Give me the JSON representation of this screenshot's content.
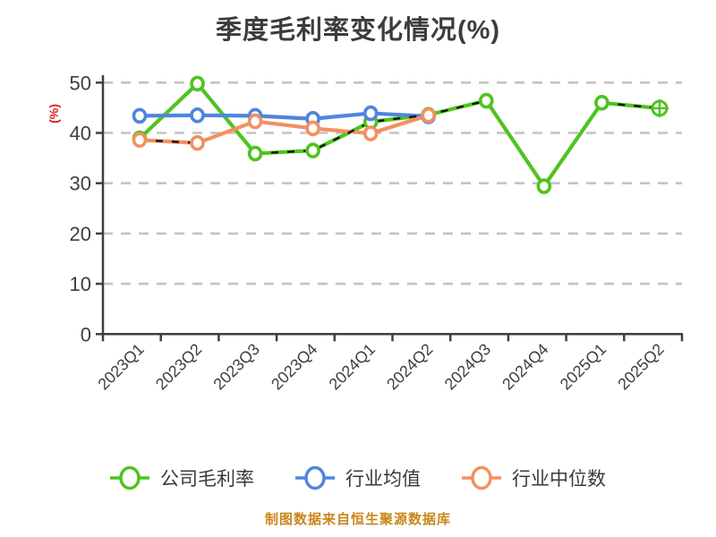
{
  "chart_data": {
    "type": "line",
    "title": "季度毛利率变化情况(%)",
    "ylabel": "(%)",
    "footer": "制图数据来自恒生聚源数据库",
    "categories": [
      "2023Q1",
      "2023Q2",
      "2023Q3",
      "2023Q4",
      "2024Q1",
      "2024Q2",
      "2024Q3",
      "2024Q4",
      "2025Q1",
      "2025Q2"
    ],
    "yticks": [
      0,
      10,
      20,
      30,
      40,
      50
    ],
    "ylim": [
      0,
      50
    ],
    "grid": "horizontal-dashed",
    "legend_position": "bottom",
    "series": [
      {
        "name": "公司毛利率",
        "color": "#4fc41e",
        "marker": "circle",
        "last_marker": "crosshair",
        "values": [
          38.9,
          49.8,
          35.9,
          36.5,
          42.2,
          43.6,
          46.4,
          29.4,
          46.0,
          44.9
        ]
      },
      {
        "name": "行业均值",
        "color": "#4f85dd",
        "marker": "circle",
        "values": [
          43.4,
          43.5,
          43.4,
          42.8,
          43.9,
          43.3
        ]
      },
      {
        "name": "行业中位数",
        "color": "#f39060",
        "marker": "circle",
        "values": [
          38.6,
          38.0,
          42.3,
          40.9,
          39.9,
          43.5
        ]
      }
    ],
    "overlay_dash_segments": [
      {
        "series": "行业中位数",
        "from": 0,
        "to": 1
      },
      {
        "series": "公司毛利率",
        "from": 2,
        "to": 6
      },
      {
        "series": "公司毛利率",
        "from": 8,
        "to": 9
      }
    ]
  },
  "colors": {
    "background": "#ffffff",
    "title": "#3c3c3c",
    "axis": "#3f3f3f",
    "tick_label": "#3f3f3f",
    "grid": "#c3c3c3",
    "ylabel": "#e02020",
    "footer": "#c8861a",
    "overlay_dash": "#141414",
    "marker_fill": "#ffffff"
  }
}
